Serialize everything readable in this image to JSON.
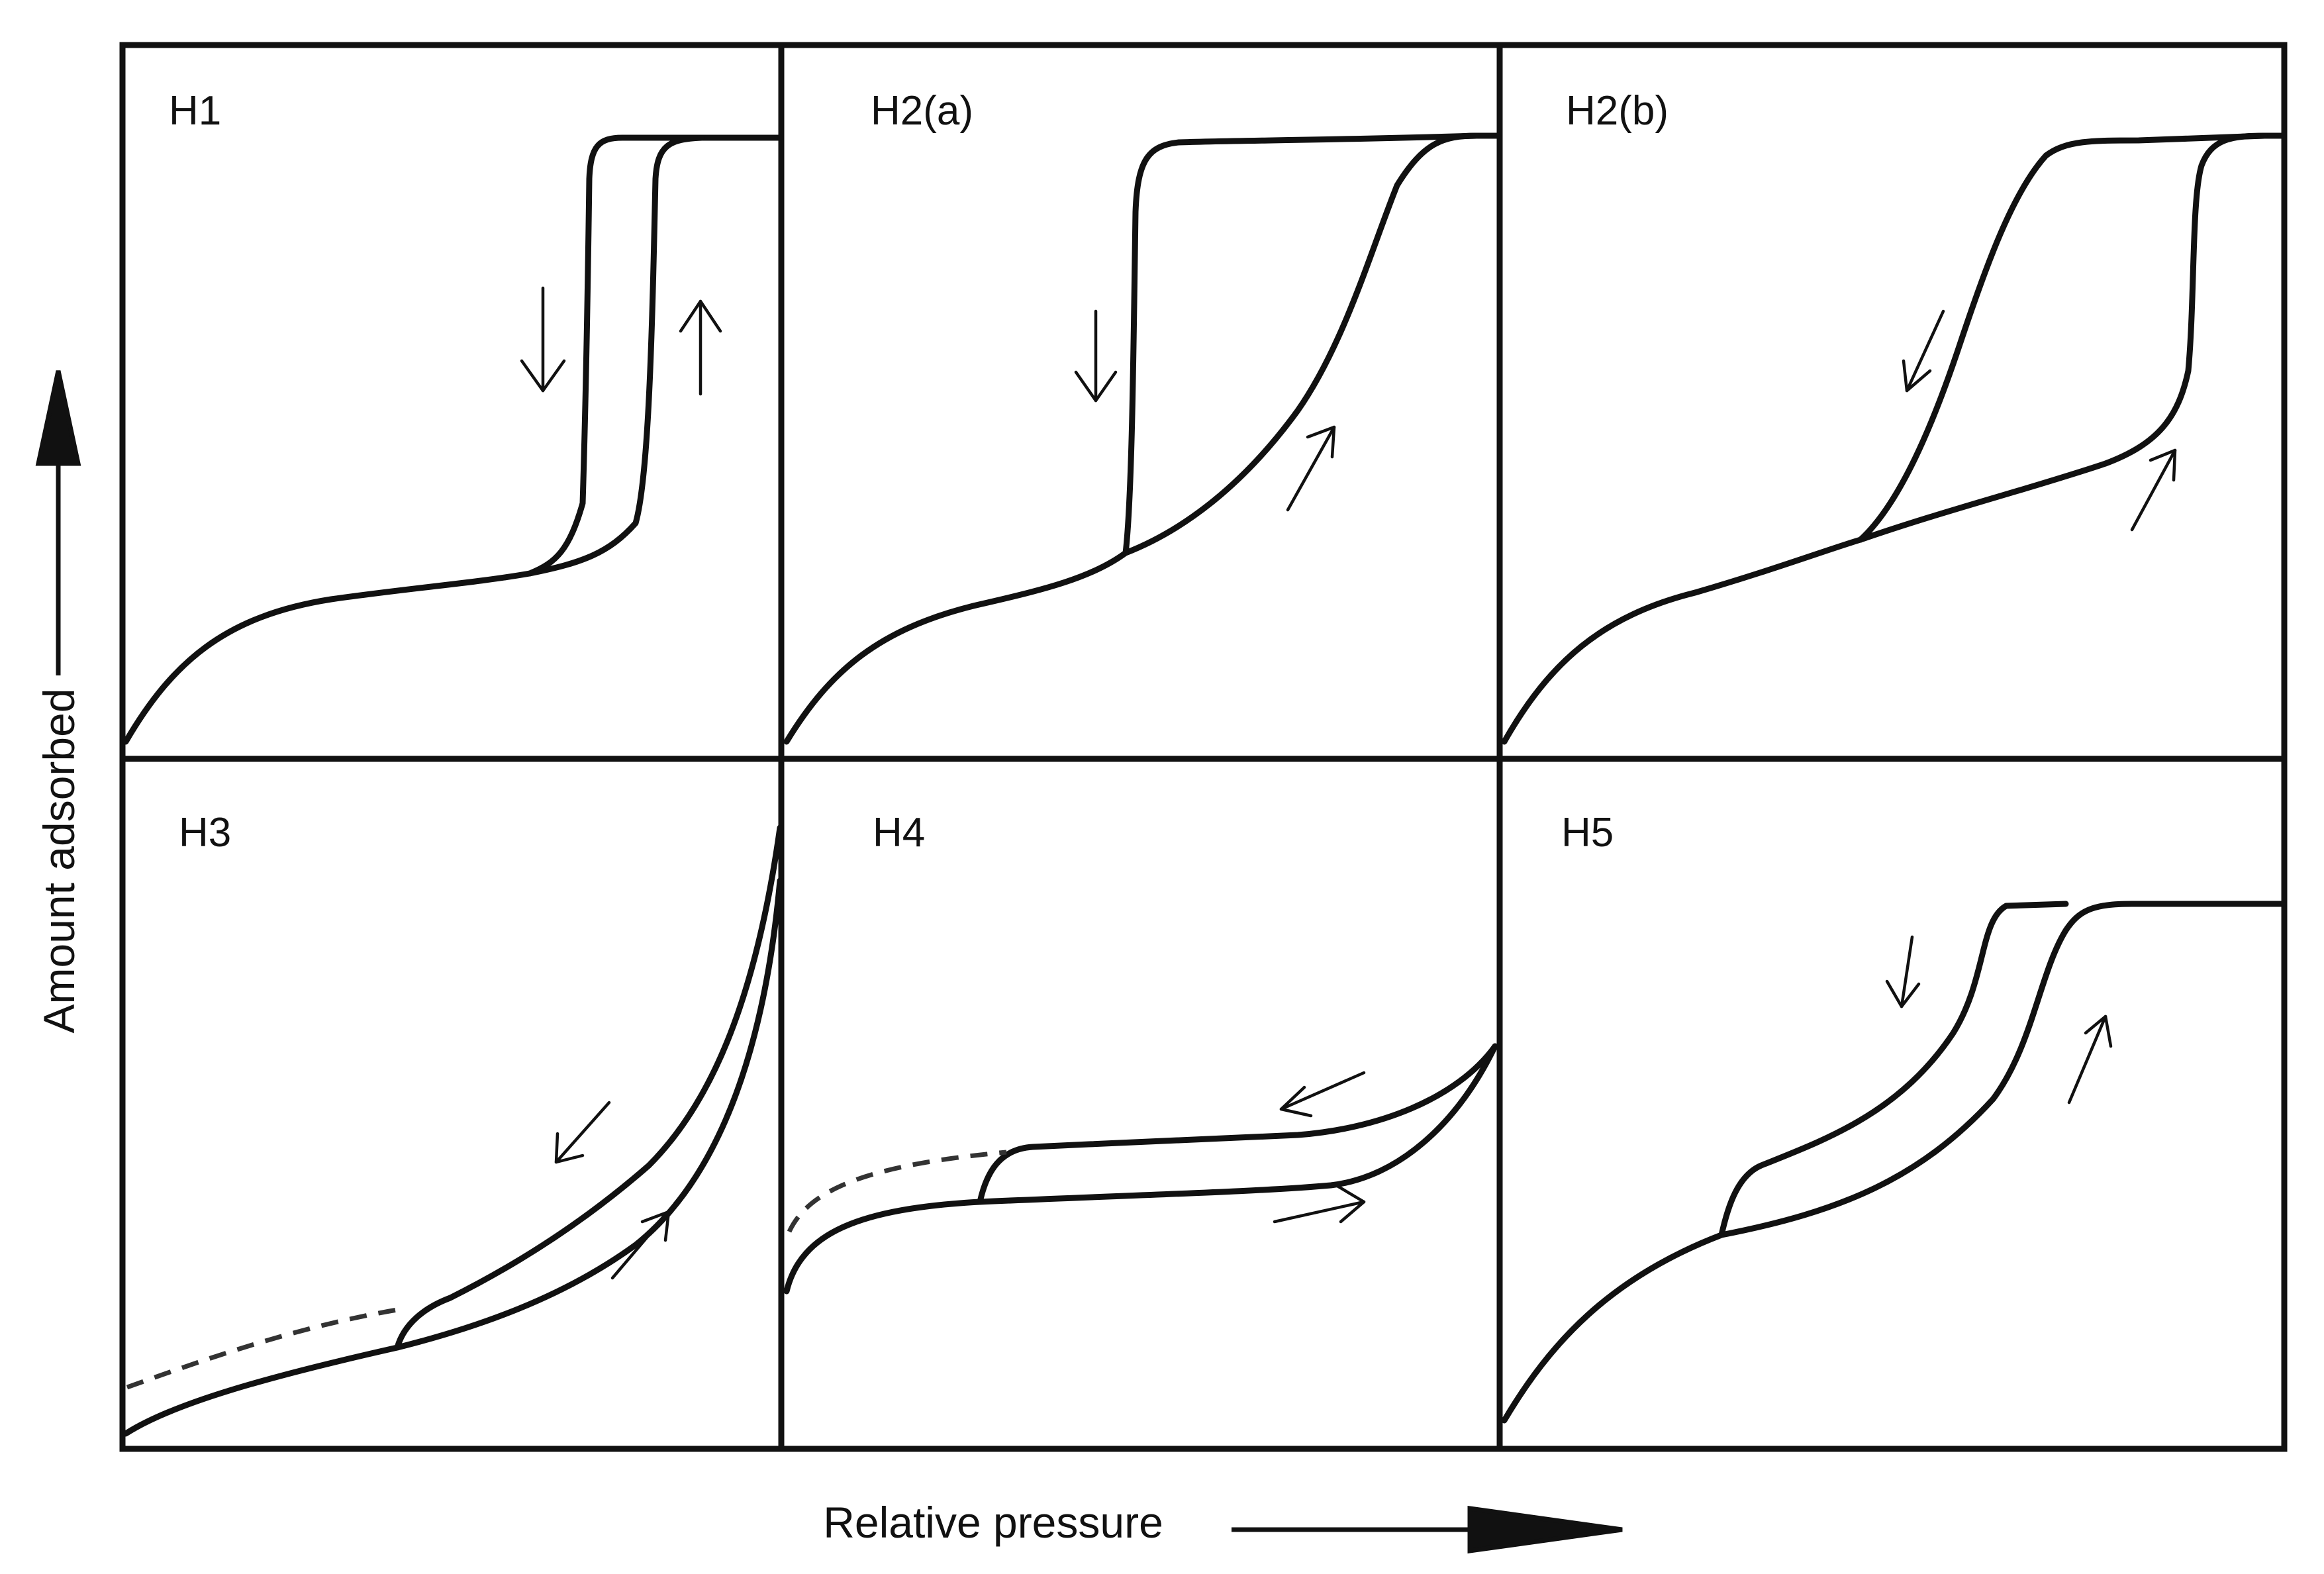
{
  "figure": {
    "panels": [
      {
        "id": "H1",
        "label": "H1"
      },
      {
        "id": "H2a",
        "label": "H2(a)"
      },
      {
        "id": "H2b",
        "label": "H2(b)"
      },
      {
        "id": "H3",
        "label": "H3"
      },
      {
        "id": "H4",
        "label": "H4"
      },
      {
        "id": "H5",
        "label": "H5"
      }
    ],
    "y_axis_label": "Amount adsorbed",
    "x_axis_label": "Relative pressure"
  }
}
